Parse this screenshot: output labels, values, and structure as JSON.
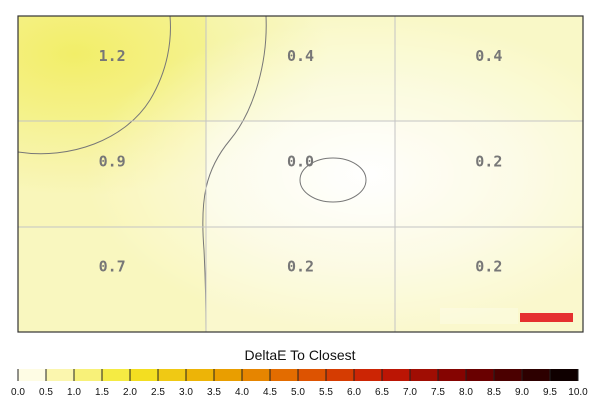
{
  "chart_data": {
    "type": "heatmap",
    "title": "",
    "colorbar": {
      "label": "DeltaE To Closest",
      "min": 0.0,
      "max": 10.0,
      "ticks": [
        "0.0",
        "0.5",
        "1.0",
        "1.5",
        "2.0",
        "2.5",
        "3.0",
        "3.5",
        "4.0",
        "4.5",
        "5.0",
        "5.5",
        "6.0",
        "6.5",
        "7.0",
        "7.5",
        "8.0",
        "8.5",
        "9.0",
        "9.5",
        "10.0"
      ]
    },
    "grid": true,
    "rows": 3,
    "cols": 3,
    "cells": [
      [
        "1.2",
        "0.4",
        "0.4"
      ],
      [
        "0.9",
        "0.0",
        "0.2"
      ],
      [
        "0.7",
        "0.2",
        "0.2"
      ]
    ],
    "values": [
      [
        1.2,
        0.4,
        0.4
      ],
      [
        0.9,
        0.0,
        0.2
      ],
      [
        0.7,
        0.2,
        0.2
      ]
    ],
    "accent_color": "#e53030"
  }
}
